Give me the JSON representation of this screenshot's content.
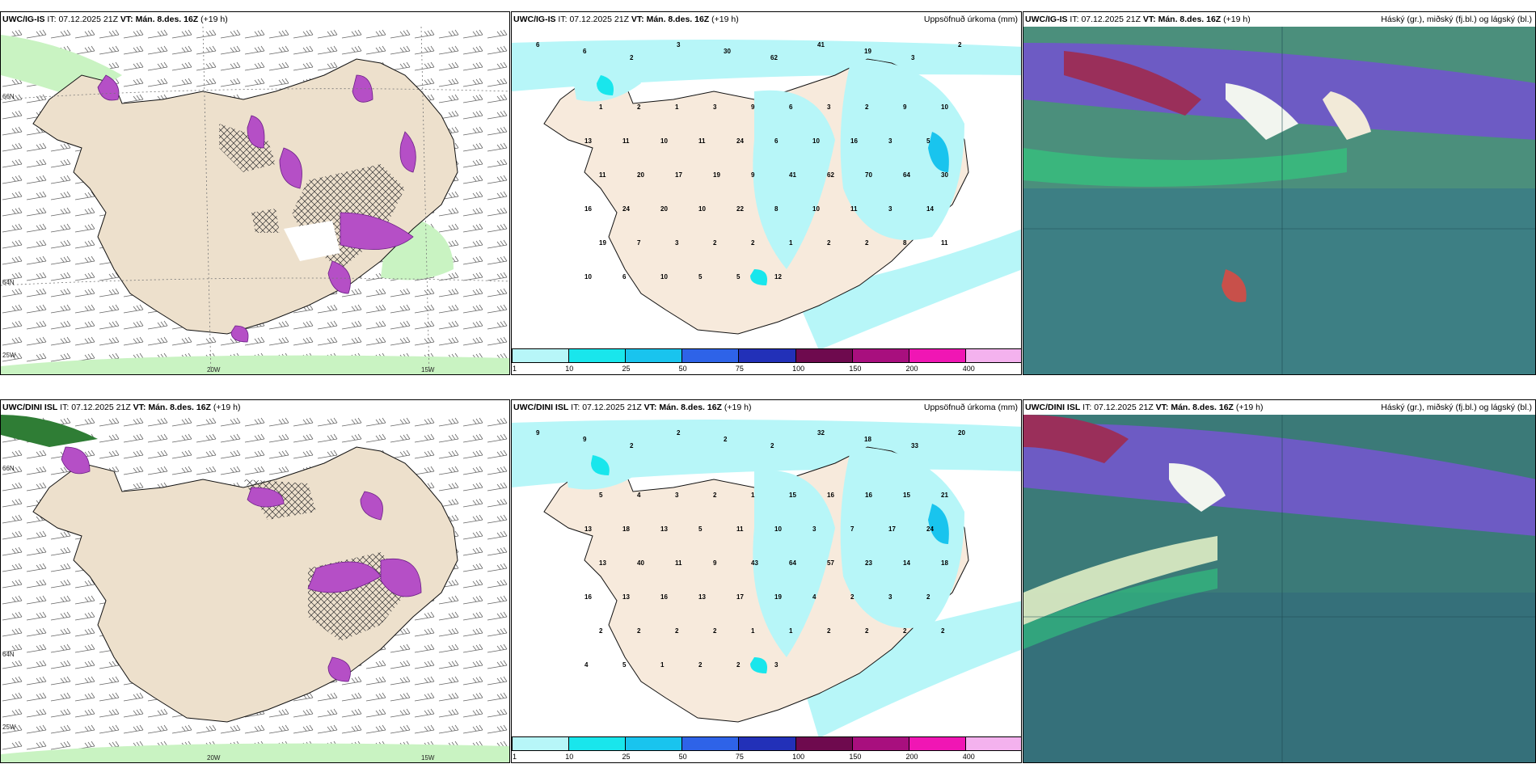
{
  "panels": [
    {
      "model": "UWC/IG-IS",
      "it": "07.12.2025 21Z",
      "vt": "Mán. 8.des. 16Z",
      "step": "(+19 h)",
      "title_right": ""
    },
    {
      "model": "UWC/IG-IS",
      "it": "07.12.2025 21Z",
      "vt": "Mán. 8.des. 16Z",
      "step": "(+19 h)",
      "title_right": "Uppsöfnuð úrkoma (mm)"
    },
    {
      "model": "UWC/IG-IS",
      "it": "07.12.2025 21Z",
      "vt": "Mán. 8.des. 16Z",
      "step": "(+19 h)",
      "title_right": "Háský (gr.), miðský (fj.bl.) og lágský (bl.)"
    },
    {
      "model": "UWC/DINI ISL",
      "it": "07.12.2025 21Z",
      "vt": "Mán. 8.des. 16Z",
      "step": "(+19 h)",
      "title_right": ""
    },
    {
      "model": "UWC/DINI ISL",
      "it": "07.12.2025 21Z",
      "vt": "Mán. 8.des. 16Z",
      "step": "(+19 h)",
      "title_right": "Uppsöfnuð úrkoma (mm)"
    },
    {
      "model": "UWC/DINI ISL",
      "it": "07.12.2025 21Z",
      "vt": "Mán. 8.des. 16Z",
      "step": "(+19 h)",
      "title_right": "Háský (gr.), miðský (fj.bl.) og lágský (bl.)"
    }
  ],
  "labels": {
    "it": "IT:",
    "vt": "VT:"
  },
  "grid": {
    "lon_20": "20W",
    "lon_15": "15W",
    "lon_25": "25W",
    "lat_66": "66N",
    "lat_64": "64N"
  },
  "colorbar": {
    "ticks": [
      "1",
      "10",
      "25",
      "50",
      "75",
      "100",
      "150",
      "200",
      "400"
    ],
    "colors": [
      "#b7f6f8",
      "#19e6ec",
      "#19c4ee",
      "#2e63e8",
      "#2230b8",
      "#6e0a4e",
      "#a80f7e",
      "#f016b4",
      "#f4b2ee"
    ]
  },
  "precip_labels_top": [
    "6",
    "6",
    "2",
    "3",
    "30",
    "62",
    "41",
    "19",
    "3",
    "2",
    "1",
    "2",
    "1",
    "3",
    "9",
    "6",
    "3",
    "2",
    "9",
    "10",
    "13",
    "11",
    "10",
    "11",
    "24",
    "6",
    "10",
    "16",
    "3",
    "5",
    "11",
    "20",
    "17",
    "19",
    "9",
    "41",
    "62",
    "70",
    "64",
    "30",
    "16",
    "24",
    "20",
    "10",
    "22",
    "8",
    "10",
    "11",
    "3",
    "14",
    "19",
    "7",
    "3",
    "2",
    "2",
    "1",
    "2",
    "2",
    "8",
    "11",
    "10",
    "6",
    "10",
    "5",
    "5",
    "12"
  ],
  "precip_labels_bottom": [
    "9",
    "9",
    "2",
    "2",
    "2",
    "2",
    "32",
    "18",
    "33",
    "20",
    "5",
    "4",
    "3",
    "2",
    "1",
    "15",
    "16",
    "16",
    "15",
    "21",
    "13",
    "18",
    "13",
    "5",
    "11",
    "10",
    "3",
    "7",
    "17",
    "24",
    "13",
    "40",
    "11",
    "9",
    "43",
    "64",
    "57",
    "23",
    "14",
    "18",
    "16",
    "13",
    "16",
    "13",
    "17",
    "19",
    "4",
    "2",
    "3",
    "2",
    "2",
    "2",
    "2",
    "2",
    "1",
    "1",
    "2",
    "2",
    "2",
    "2",
    "4",
    "5",
    "1",
    "2",
    "2",
    "3"
  ],
  "colors": {
    "land": "#ede0cc",
    "sea": "#ffffff",
    "wind": "#555555",
    "hatch": "#333333",
    "purple": "#b54fc6",
    "green": "#b9f0b0"
  }
}
